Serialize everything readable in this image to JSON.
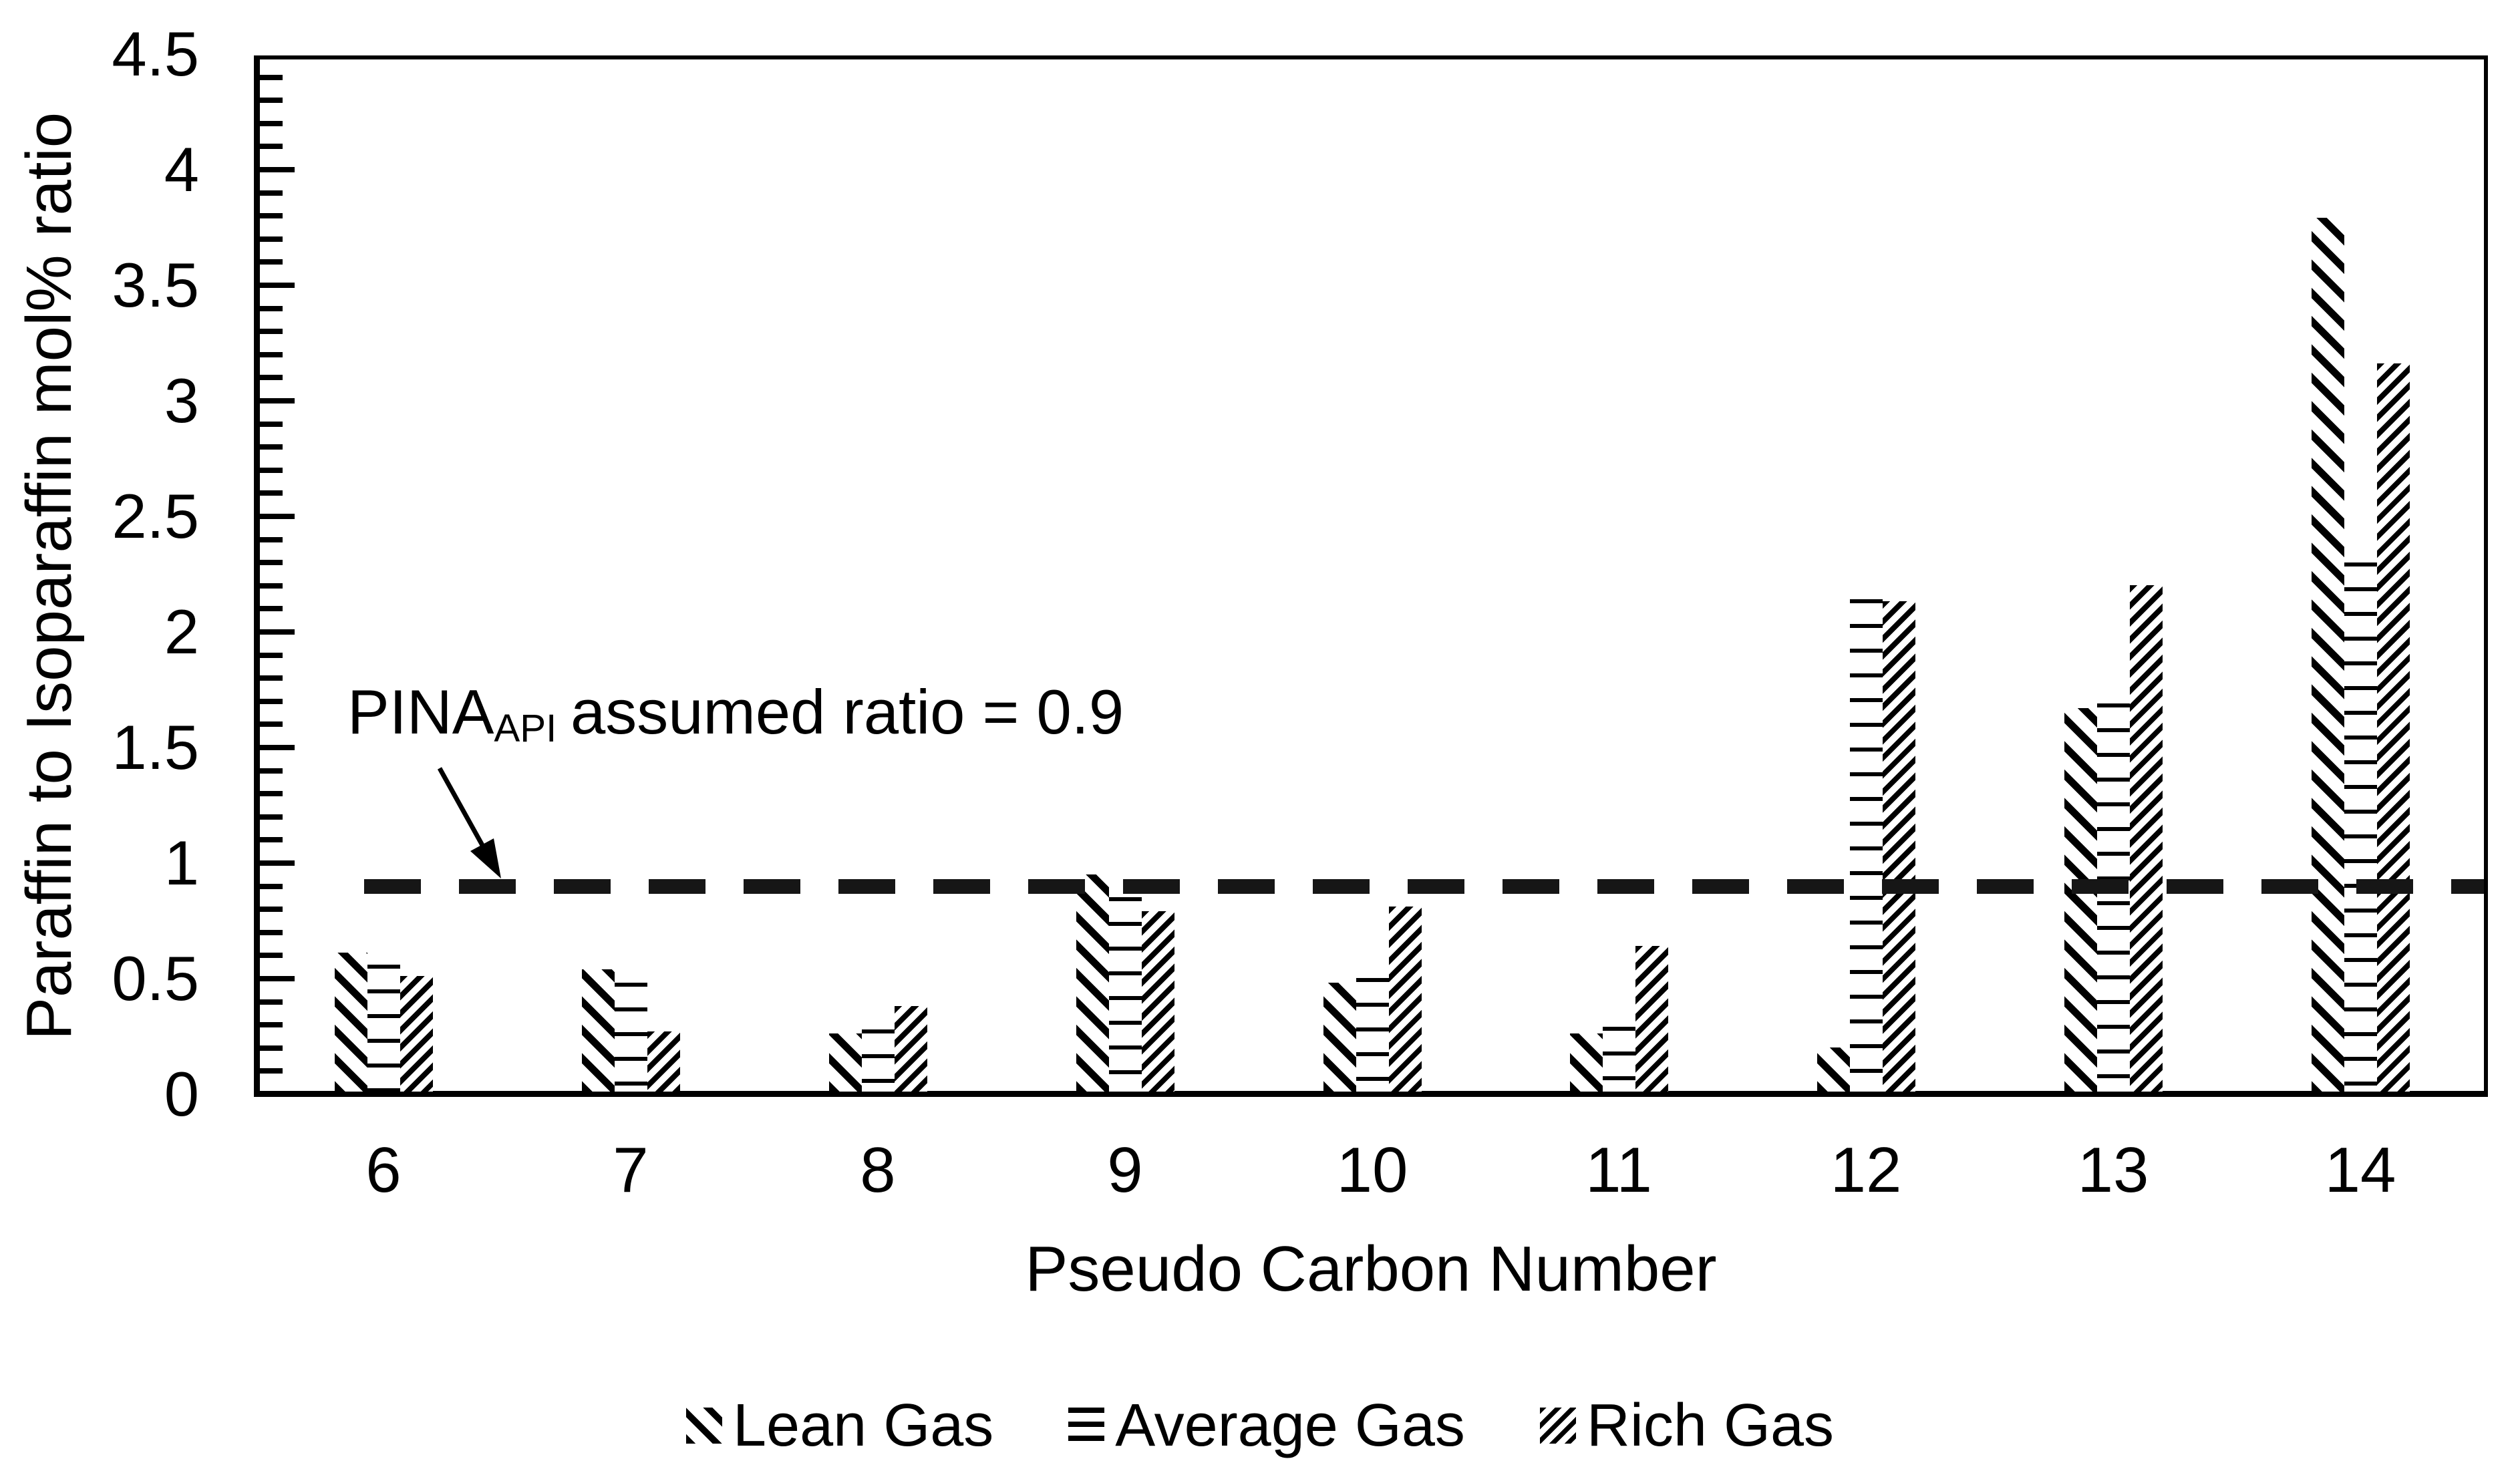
{
  "chart_data": {
    "type": "bar",
    "title": "",
    "xlabel": "Pseudo Carbon Number",
    "ylabel": "Paraffin to Isoparaffin mol% ratio",
    "categories": [
      "6",
      "7",
      "8",
      "9",
      "10",
      "11",
      "12",
      "13",
      "14"
    ],
    "series": [
      {
        "name": "Lean Gas",
        "pattern": "diagonal-down",
        "values": [
          0.6,
          0.53,
          0.25,
          0.94,
          0.47,
          0.25,
          0.19,
          1.66,
          3.78
        ]
      },
      {
        "name": "Average Gas",
        "pattern": "horizontal",
        "values": [
          0.55,
          0.47,
          0.27,
          0.84,
          0.49,
          0.28,
          2.13,
          1.68,
          2.29
        ]
      },
      {
        "name": "Rich Gas",
        "pattern": "diagonal-up",
        "values": [
          0.5,
          0.26,
          0.37,
          0.78,
          0.8,
          0.63,
          2.12,
          2.19,
          3.15
        ]
      }
    ],
    "ylim": [
      0,
      4.5
    ],
    "ytick_major_step": 0.5,
    "ytick_minor_step": 0.1,
    "ytick_labels": [
      "0",
      "0.5",
      "1",
      "1.5",
      "2",
      "2.5",
      "3",
      "3.5",
      "4",
      "4.5"
    ],
    "grid": false,
    "legend_position": "bottom",
    "bar_color": "#000000",
    "background_color": "#ffffff",
    "reference_line": {
      "value": 0.9,
      "color": "#161616",
      "style": "dashed",
      "annotation": {
        "text_main": "PINA",
        "text_sub": "API",
        "text_rest": "assumed ratio = 0.9"
      }
    }
  }
}
